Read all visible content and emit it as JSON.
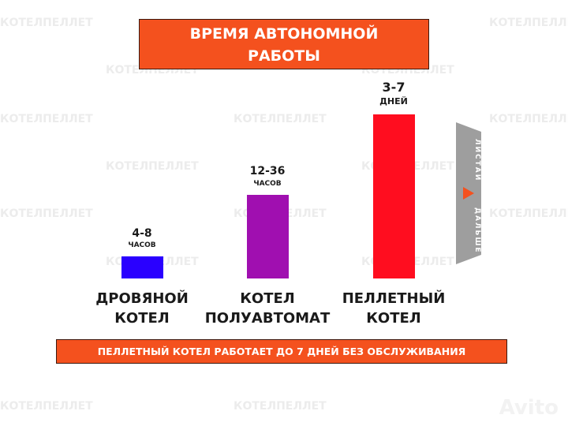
{
  "title": {
    "lines": [
      "ВРЕМЯ АВТОНОМНОЙ",
      "РАБОТЫ"
    ]
  },
  "bars": [
    {
      "range": "4-8",
      "unit": "ЧАСОВ",
      "label": [
        "ДРОВЯНОЙ",
        "КОТЕЛ"
      ]
    },
    {
      "range": "12-36",
      "unit": "ЧАСОВ",
      "label": [
        "КОТЕЛ",
        "ПОЛУАВТОМАТ"
      ]
    },
    {
      "range": "3-7",
      "unit": "ДНЕЙ",
      "label": [
        "ПЕЛЛЕТНЫЙ",
        "КОТЕЛ"
      ]
    }
  ],
  "swipe_hint": {
    "top": "ЛИСТАЙ",
    "bottom": "ДАЛЬШЕ"
  },
  "banner": "ПЕЛЛЕТНЫЙ КОТЕЛ РАБОТАЕТ ДО 7 ДНЕЙ БЕЗ ОБСЛУЖИВАНИЯ",
  "watermark": "КОТЕЛПЕЛЛЕТ",
  "logo": "Avito"
}
